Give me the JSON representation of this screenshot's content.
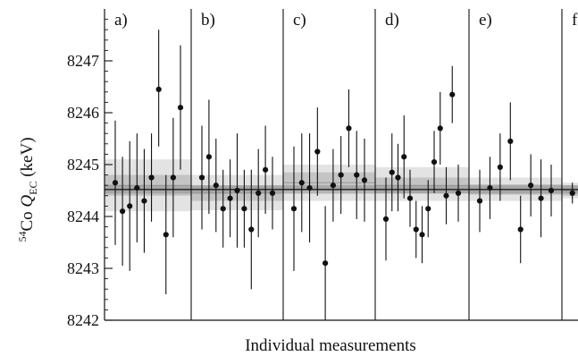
{
  "chart_data": {
    "type": "scatter",
    "xlabel": "Individual measurements",
    "ylabel": {
      "superscript": "54",
      "element": "Co ",
      "symbol": "Q",
      "subscript": "EC",
      "unit": " (keV)"
    },
    "ylim": [
      8242,
      8248
    ],
    "yticks": [
      8242,
      8243,
      8244,
      8245,
      8246,
      8247
    ],
    "overall_mean": 8244.52,
    "overall_band": [
      8244.44,
      8244.6
    ],
    "panels": [
      {
        "label": "a)",
        "mean": 8244.6,
        "band_inner": [
          8244.4,
          8244.8
        ],
        "band_outer": [
          8244.1,
          8245.1
        ],
        "points": [
          {
            "value": 8244.65,
            "low": 8243.45,
            "high": 8245.85
          },
          {
            "value": 8244.1,
            "low": 8243.05,
            "high": 8245.15
          },
          {
            "value": 8244.2,
            "low": 8242.95,
            "high": 8245.45
          },
          {
            "value": 8244.55,
            "low": 8243.5,
            "high": 8245.6
          },
          {
            "value": 8244.3,
            "low": 8243.3,
            "high": 8245.3
          },
          {
            "value": 8244.75,
            "low": 8243.9,
            "high": 8245.6
          },
          {
            "value": 8246.45,
            "low": 8245.35,
            "high": 8247.6
          },
          {
            "value": 8243.65,
            "low": 8242.5,
            "high": 8244.8
          },
          {
            "value": 8244.75,
            "low": 8243.6,
            "high": 8245.9
          },
          {
            "value": 8246.1,
            "low": 8244.9,
            "high": 8247.3
          }
        ]
      },
      {
        "label": "b)",
        "mean": 8244.45,
        "band_inner": [
          8244.3,
          8244.6
        ],
        "band_outer": [
          8244.12,
          8244.8
        ],
        "points": [
          {
            "value": 8244.75,
            "low": 8243.75,
            "high": 8245.75
          },
          {
            "value": 8245.15,
            "low": 8244.05,
            "high": 8246.25
          },
          {
            "value": 8244.6,
            "low": 8243.7,
            "high": 8245.5
          },
          {
            "value": 8244.15,
            "low": 8243.4,
            "high": 8244.9
          },
          {
            "value": 8244.35,
            "low": 8243.6,
            "high": 8245.1
          },
          {
            "value": 8244.5,
            "low": 8243.4,
            "high": 8245.6
          },
          {
            "value": 8244.15,
            "low": 8243.4,
            "high": 8244.9
          },
          {
            "value": 8243.75,
            "low": 8242.6,
            "high": 8244.9
          },
          {
            "value": 8244.45,
            "low": 8243.6,
            "high": 8245.3
          },
          {
            "value": 8244.9,
            "low": 8244.05,
            "high": 8245.75
          },
          {
            "value": 8244.45,
            "low": 8243.75,
            "high": 8245.15
          }
        ]
      },
      {
        "label": "c)",
        "mean": 8244.65,
        "band_inner": [
          8244.5,
          8244.85
        ],
        "band_outer": [
          8244.3,
          8245.0
        ],
        "points": [
          {
            "value": 8244.15,
            "low": 8242.95,
            "high": 8245.35
          },
          {
            "value": 8244.65,
            "low": 8243.7,
            "high": 8245.6
          },
          {
            "value": 8244.55,
            "low": 8243.5,
            "high": 8245.6
          },
          {
            "value": 8245.25,
            "low": 8244.4,
            "high": 8246.1
          },
          {
            "value": 8243.1,
            "low": 8242.0,
            "high": 8244.2
          },
          {
            "value": 8244.6,
            "low": 8243.9,
            "high": 8245.3
          },
          {
            "value": 8244.8,
            "low": 8244.05,
            "high": 8245.55
          },
          {
            "value": 8245.7,
            "low": 8244.95,
            "high": 8246.45
          },
          {
            "value": 8244.8,
            "low": 8243.95,
            "high": 8245.65
          },
          {
            "value": 8244.7,
            "low": 8243.9,
            "high": 8245.5
          }
        ]
      },
      {
        "label": "d)",
        "mean": 8244.6,
        "band_inner": [
          8244.45,
          8244.75
        ],
        "band_outer": [
          8244.3,
          8244.95
        ],
        "points": [
          {
            "value": 8243.95,
            "low": 8243.15,
            "high": 8244.75
          },
          {
            "value": 8244.85,
            "low": 8244.1,
            "high": 8245.6
          },
          {
            "value": 8244.75,
            "low": 8244.1,
            "high": 8245.4
          },
          {
            "value": 8245.15,
            "low": 8244.35,
            "high": 8245.95
          },
          {
            "value": 8244.35,
            "low": 8243.8,
            "high": 8244.9
          },
          {
            "value": 8243.75,
            "low": 8243.2,
            "high": 8244.3
          },
          {
            "value": 8243.65,
            "low": 8243.1,
            "high": 8244.2
          },
          {
            "value": 8244.15,
            "low": 8243.6,
            "high": 8244.7
          },
          {
            "value": 8245.05,
            "low": 8244.45,
            "high": 8245.65
          },
          {
            "value": 8245.7,
            "low": 8245.0,
            "high": 8246.4
          },
          {
            "value": 8244.4,
            "low": 8243.85,
            "high": 8244.95
          },
          {
            "value": 8246.35,
            "low": 8245.8,
            "high": 8246.9
          },
          {
            "value": 8244.45,
            "low": 8243.9,
            "high": 8245.0
          }
        ]
      },
      {
        "label": "e)",
        "mean": 8244.52,
        "band_inner": [
          8244.42,
          8244.62
        ],
        "band_outer": [
          8244.3,
          8244.75
        ],
        "points": [
          {
            "value": 8244.3,
            "low": 8243.7,
            "high": 8244.9
          },
          {
            "value": 8244.55,
            "low": 8243.95,
            "high": 8245.15
          },
          {
            "value": 8244.95,
            "low": 8244.3,
            "high": 8245.6
          },
          {
            "value": 8245.45,
            "low": 8244.7,
            "high": 8246.2
          },
          {
            "value": 8243.75,
            "low": 8243.1,
            "high": 8244.4
          },
          {
            "value": 8244.6,
            "low": 8244.0,
            "high": 8245.2
          },
          {
            "value": 8244.35,
            "low": 8243.6,
            "high": 8245.1
          },
          {
            "value": 8244.5,
            "low": 8244.0,
            "high": 8245.0
          }
        ]
      },
      {
        "label": "f)",
        "mean": 8244.5,
        "band_inner": [
          8244.4,
          8244.6
        ],
        "band_outer": [
          8244.35,
          8244.65
        ],
        "points": [
          {
            "value": 8244.45,
            "low": 8244.25,
            "high": 8244.65
          }
        ]
      }
    ]
  }
}
